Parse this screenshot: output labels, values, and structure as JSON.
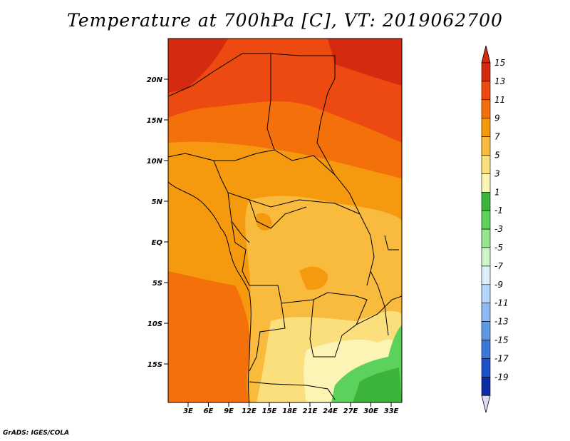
{
  "title": "Temperature at 700hPa [C], VT: 2019062700",
  "credit": "GrADS: IGES/COLA",
  "map": {
    "lat_labels": [
      "20N",
      "15N",
      "10N",
      "5N",
      "EQ",
      "5S",
      "10S",
      "15S"
    ],
    "lon_labels": [
      "3E",
      "6E",
      "9E",
      "12E",
      "15E",
      "18E",
      "21E",
      "24E",
      "27E",
      "30E",
      "33E"
    ]
  },
  "colorbar": {
    "labels": [
      "15",
      "13",
      "11",
      "9",
      "7",
      "5",
      "3",
      "1",
      "-1",
      "-3",
      "-5",
      "-7",
      "-9",
      "-11",
      "-13",
      "-15",
      "-17",
      "-19"
    ],
    "colors": [
      "#d42a10",
      "#ec4a10",
      "#f4700a",
      "#f59a0e",
      "#f8bb3e",
      "#fadf7c",
      "#fbf4b4",
      "#3cb43c",
      "#5cd25c",
      "#96e690",
      "#cef5c8",
      "#ddeefa",
      "#b4d6fa",
      "#8cbaf2",
      "#5c9ae6",
      "#3a78dc",
      "#1c50c8",
      "#0c2aa4",
      "#08086a"
    ],
    "arrow_top_color": "#d42a10",
    "arrow_bottom_color": "#dcdcf6"
  }
}
